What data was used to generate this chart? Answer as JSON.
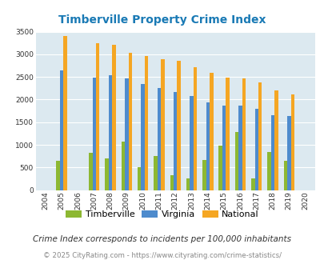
{
  "title": "Timberville Property Crime Index",
  "years": [
    2004,
    2005,
    2006,
    2007,
    2008,
    2009,
    2010,
    2011,
    2012,
    2013,
    2014,
    2015,
    2016,
    2017,
    2018,
    2019,
    2020
  ],
  "timberville": [
    null,
    650,
    null,
    820,
    700,
    1070,
    510,
    760,
    330,
    250,
    660,
    990,
    1280,
    250,
    840,
    640,
    null
  ],
  "virginia": [
    null,
    2650,
    null,
    2490,
    2540,
    2460,
    2340,
    2260,
    2160,
    2070,
    1940,
    1870,
    1870,
    1790,
    1650,
    1630,
    null
  ],
  "national": [
    null,
    3410,
    null,
    3250,
    3210,
    3040,
    2960,
    2900,
    2860,
    2710,
    2590,
    2490,
    2470,
    2380,
    2200,
    2120,
    null
  ],
  "timberville_color": "#8db832",
  "virginia_color": "#4e8bcd",
  "national_color": "#f5a623",
  "bg_color": "#dce9f0",
  "ylim": [
    0,
    3500
  ],
  "yticks": [
    0,
    500,
    1000,
    1500,
    2000,
    2500,
    3000,
    3500
  ],
  "subtitle": "Crime Index corresponds to incidents per 100,000 inhabitants",
  "footer": "© 2025 CityRating.com - https://www.cityrating.com/crime-statistics/",
  "legend_labels": [
    "Timberville",
    "Virginia",
    "National"
  ],
  "title_color": "#1a7ab5",
  "subtitle_color": "#333333",
  "footer_color": "#888888"
}
